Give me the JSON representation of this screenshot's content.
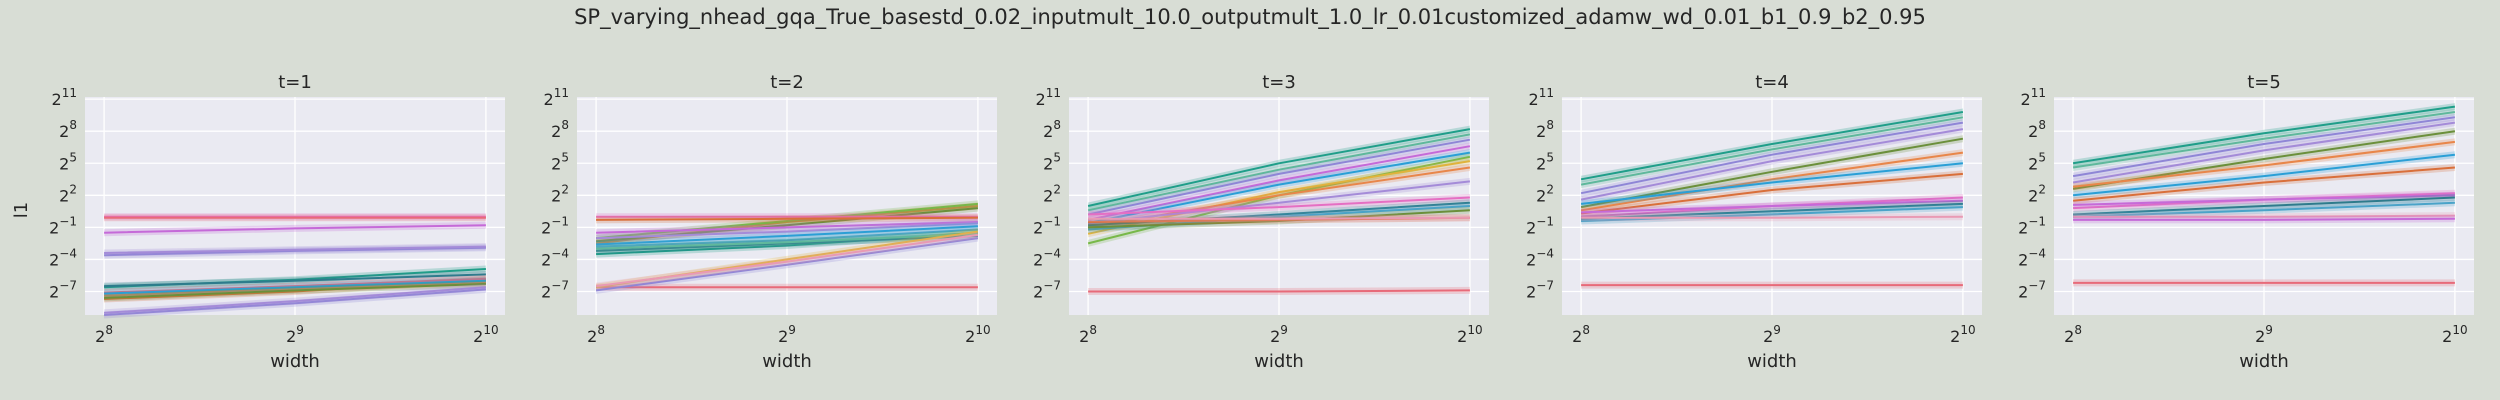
{
  "figure": {
    "suptitle": "SP_varying_nhead_gqa_True_basestd_0.02_inputmult_10.0_outputmult_1.0_lr_0.01customized_adamw_wd_0.01_b1_0.9_b2_0.95",
    "background": "#d8ddd5",
    "axes_background": "#eaeaf2",
    "grid_color": "#ffffff"
  },
  "chart_data": {
    "type": "line",
    "x_scale": "log2",
    "y_scale": "log2",
    "x": [
      256,
      512,
      1024
    ],
    "x_tick_labels": [
      {
        "base": "2",
        "exp": "8"
      },
      {
        "base": "2",
        "exp": "9"
      },
      {
        "base": "2",
        "exp": "10"
      }
    ],
    "y_tick_labels": [
      {
        "base": "2",
        "exp": "11"
      },
      {
        "base": "2",
        "exp": "8"
      },
      {
        "base": "2",
        "exp": "5"
      },
      {
        "base": "2",
        "exp": "2"
      },
      {
        "base": "2",
        "exp": "−1"
      },
      {
        "base": "2",
        "exp": "−4"
      },
      {
        "base": "2",
        "exp": "−7"
      }
    ],
    "y_tick_exponents": [
      11,
      8,
      5,
      2,
      -1,
      -4,
      -7
    ],
    "xlim_log2": [
      7.9,
      10.1
    ],
    "ylim_log2": [
      -9.2,
      11.2
    ],
    "xlabel": "width",
    "ylabel": "l1",
    "grid": true,
    "series_colors": [
      "#1f9e89",
      "#e8864a",
      "#8f86d6",
      "#e56fc3",
      "#78b84a",
      "#e0b33c",
      "#2a9fd6",
      "#e76a79",
      "#2e7b8c",
      "#a48bd8",
      "#5fb89c",
      "#d96f3a",
      "#c56ad8",
      "#4aa3c8",
      "#e99ab4",
      "#6b8f3b"
    ],
    "panels": [
      {
        "title": "t=1",
        "series": [
          {
            "color": "#e56fc3",
            "log2_values": [
              0.0,
              0.0,
              0.0
            ]
          },
          {
            "color": "#e76a79",
            "log2_values": [
              -0.1,
              -0.1,
              -0.1
            ]
          },
          {
            "color": "#c56ad8",
            "log2_values": [
              -1.5,
              -1.1,
              -0.8
            ]
          },
          {
            "color": "#8f86d6",
            "log2_values": [
              -3.6,
              -3.2,
              -2.9
            ]
          },
          {
            "color": "#a48bd8",
            "log2_values": [
              -3.4,
              -3.1,
              -2.8
            ]
          },
          {
            "color": "#1f9e89",
            "log2_values": [
              -6.6,
              -5.9,
              -4.9
            ]
          },
          {
            "color": "#2e7b8c",
            "log2_values": [
              -6.5,
              -6.0,
              -5.4
            ]
          },
          {
            "color": "#d96f3a",
            "log2_values": [
              -7.7,
              -7.0,
              -5.9
            ]
          },
          {
            "color": "#e8864a",
            "log2_values": [
              -7.4,
              -6.7,
              -6.2
            ]
          },
          {
            "color": "#e76a79",
            "log2_values": [
              -7.1,
              -6.5,
              -5.8
            ]
          },
          {
            "color": "#2a9fd6",
            "log2_values": [
              -7.2,
              -6.6,
              -6.0
            ]
          },
          {
            "color": "#6b8f3b",
            "log2_values": [
              -7.6,
              -6.9,
              -6.3
            ]
          },
          {
            "color": "#8f86d6",
            "log2_values": [
              -9.2,
              -8.1,
              -6.8
            ]
          },
          {
            "color": "#a48bd8",
            "log2_values": [
              -9.0,
              -7.9,
              -6.6
            ]
          }
        ]
      },
      {
        "title": "t=2",
        "series": [
          {
            "color": "#e76a79",
            "log2_values": [
              -6.6,
              -6.6,
              -6.6
            ]
          },
          {
            "color": "#e8864a",
            "log2_values": [
              -2.5,
              -0.5,
              1.0
            ]
          },
          {
            "color": "#78b84a",
            "log2_values": [
              -2.0,
              -0.4,
              1.2
            ]
          },
          {
            "color": "#6b8f3b",
            "log2_values": [
              -2.3,
              -0.8,
              0.8
            ]
          },
          {
            "color": "#e56fc3",
            "log2_values": [
              0.0,
              0.0,
              0.0
            ]
          },
          {
            "color": "#d96f3a",
            "log2_values": [
              -0.3,
              -0.2,
              -0.1
            ]
          },
          {
            "color": "#c56ad8",
            "log2_values": [
              -1.5,
              -1.0,
              -0.5
            ]
          },
          {
            "color": "#a48bd8",
            "log2_values": [
              -2.0,
              -1.4,
              -0.6
            ]
          },
          {
            "color": "#2a9fd6",
            "log2_values": [
              -2.6,
              -1.8,
              -0.9
            ]
          },
          {
            "color": "#4aa3c8",
            "log2_values": [
              -2.8,
              -2.2,
              -1.2
            ]
          },
          {
            "color": "#1f9e89",
            "log2_values": [
              -3.5,
              -2.7,
              -1.5
            ]
          },
          {
            "color": "#2e7b8c",
            "log2_values": [
              -3.2,
              -2.5,
              -1.8
            ]
          },
          {
            "color": "#5fb89c",
            "log2_values": [
              -3.0,
              -2.4,
              -1.6
            ]
          },
          {
            "color": "#e0b33c",
            "log2_values": [
              -6.6,
              -4.0,
              -1.4
            ]
          },
          {
            "color": "#8f86d6",
            "log2_values": [
              -6.9,
              -4.5,
              -2.0
            ]
          },
          {
            "color": "#e99ab4",
            "log2_values": [
              -6.5,
              -4.2,
              -1.7
            ]
          }
        ]
      },
      {
        "title": "t=3",
        "series": [
          {
            "color": "#e76a79",
            "log2_values": [
              -7.0,
              -7.0,
              -6.9
            ]
          },
          {
            "color": "#1f9e89",
            "log2_values": [
              1.0,
              5.0,
              8.2
            ]
          },
          {
            "color": "#5fb89c",
            "log2_values": [
              0.6,
              4.4,
              7.7
            ]
          },
          {
            "color": "#8f86d6",
            "log2_values": [
              0.2,
              4.0,
              7.2
            ]
          },
          {
            "color": "#c56ad8",
            "log2_values": [
              -0.3,
              3.4,
              6.6
            ]
          },
          {
            "color": "#2a9fd6",
            "log2_values": [
              -0.6,
              3.0,
              6.0
            ]
          },
          {
            "color": "#78b84a",
            "log2_values": [
              -2.5,
              2.0,
              5.6
            ]
          },
          {
            "color": "#e0b33c",
            "log2_values": [
              -1.6,
              2.3,
              5.2
            ]
          },
          {
            "color": "#e8864a",
            "log2_values": [
              -1.0,
              2.0,
              4.6
            ]
          },
          {
            "color": "#a48bd8",
            "log2_values": [
              -0.6,
              1.3,
              3.3
            ]
          },
          {
            "color": "#e56fc3",
            "log2_values": [
              0.2,
              0.9,
              1.8
            ]
          },
          {
            "color": "#2e7b8c",
            "log2_values": [
              -0.8,
              0.2,
              1.3
            ]
          },
          {
            "color": "#4aa3c8",
            "log2_values": [
              -1.2,
              0.0,
              1.0
            ]
          },
          {
            "color": "#6b8f3b",
            "log2_values": [
              -1.0,
              -0.4,
              0.6
            ]
          },
          {
            "color": "#d96f3a",
            "log2_values": [
              -0.5,
              -0.3,
              -0.1
            ]
          },
          {
            "color": "#e99ab4",
            "log2_values": [
              -0.2,
              -0.2,
              -0.1
            ]
          }
        ]
      },
      {
        "title": "t=4",
        "series": [
          {
            "color": "#e76a79",
            "log2_values": [
              -6.4,
              -6.4,
              -6.4
            ]
          },
          {
            "color": "#1f9e89",
            "log2_values": [
              3.5,
              6.8,
              9.8
            ]
          },
          {
            "color": "#5fb89c",
            "log2_values": [
              3.0,
              6.3,
              9.3
            ]
          },
          {
            "color": "#8f86d6",
            "log2_values": [
              2.2,
              5.8,
              8.8
            ]
          },
          {
            "color": "#a48bd8",
            "log2_values": [
              1.6,
              5.2,
              8.2
            ]
          },
          {
            "color": "#6b8f3b",
            "log2_values": [
              0.9,
              4.2,
              7.3
            ]
          },
          {
            "color": "#e8864a",
            "log2_values": [
              0.6,
              3.5,
              6.0
            ]
          },
          {
            "color": "#2a9fd6",
            "log2_values": [
              1.2,
              3.2,
              5.0
            ]
          },
          {
            "color": "#d96f3a",
            "log2_values": [
              0.3,
              2.5,
              4.0
            ]
          },
          {
            "color": "#e56fc3",
            "log2_values": [
              0.0,
              1.0,
              1.8
            ]
          },
          {
            "color": "#c56ad8",
            "log2_values": [
              0.4,
              1.0,
              1.5
            ]
          },
          {
            "color": "#2e7b8c",
            "log2_values": [
              -0.2,
              0.5,
              1.2
            ]
          },
          {
            "color": "#4aa3c8",
            "log2_values": [
              -0.4,
              0.2,
              0.9
            ]
          },
          {
            "color": "#e99ab4",
            "log2_values": [
              -0.1,
              -0.1,
              0.0
            ]
          }
        ]
      },
      {
        "title": "t=5",
        "series": [
          {
            "color": "#e76a79",
            "log2_values": [
              -6.2,
              -6.2,
              -6.2
            ]
          },
          {
            "color": "#1f9e89",
            "log2_values": [
              5.0,
              7.8,
              10.3
            ]
          },
          {
            "color": "#5fb89c",
            "log2_values": [
              4.6,
              7.3,
              9.8
            ]
          },
          {
            "color": "#8f86d6",
            "log2_values": [
              3.8,
              6.8,
              9.3
            ]
          },
          {
            "color": "#a48bd8",
            "log2_values": [
              3.2,
              6.2,
              8.8
            ]
          },
          {
            "color": "#6b8f3b",
            "log2_values": [
              2.6,
              5.4,
              8.0
            ]
          },
          {
            "color": "#e8864a",
            "log2_values": [
              2.8,
              4.8,
              7.0
            ]
          },
          {
            "color": "#2a9fd6",
            "log2_values": [
              2.0,
              3.8,
              5.8
            ]
          },
          {
            "color": "#d96f3a",
            "log2_values": [
              1.5,
              3.2,
              4.6
            ]
          },
          {
            "color": "#e56fc3",
            "log2_values": [
              0.8,
              1.6,
              2.2
            ]
          },
          {
            "color": "#c56ad8",
            "log2_values": [
              1.1,
              1.6,
              2.0
            ]
          },
          {
            "color": "#2e7b8c",
            "log2_values": [
              0.2,
              1.0,
              1.8
            ]
          },
          {
            "color": "#4aa3c8",
            "log2_values": [
              0.0,
              0.6,
              1.3
            ]
          },
          {
            "color": "#e99ab4",
            "log2_values": [
              0.0,
              0.0,
              0.1
            ]
          },
          {
            "color": "#c56ad8",
            "log2_values": [
              -0.3,
              -0.3,
              -0.2
            ]
          }
        ]
      }
    ]
  }
}
